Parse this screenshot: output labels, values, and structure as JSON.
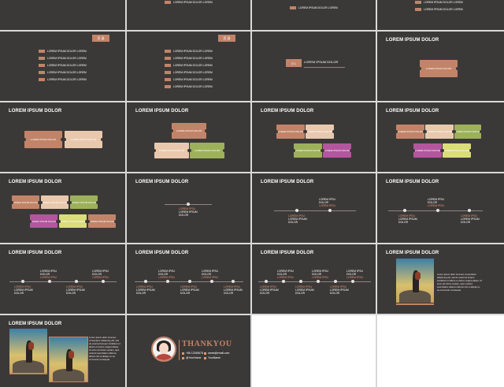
{
  "common": {
    "lorem_title": "LOREM IPSUM DOLOR",
    "lorem_item": "LOREM IPSUM DOLOR LOREM",
    "ticket_text": "LOREM IPSUM DOLOR",
    "timeline_label": "LOREM IPSU",
    "timeline_top_lines": [
      "LOREM IPSU",
      "DOLOR",
      "LOREM IPSU"
    ],
    "timeline_bottom_lines": [
      "LOREM IPSU",
      "LOREM IPSUM",
      "DOLOR"
    ],
    "paragraph": "Lorem ipsum dolor sit amet, consectetur adipiscing elit, sed do eiusmod tempor incididunt ut labore et dolore magna aliqua. Ut enim ad minim veniam, quis nostrud exercitation ullamco laboris nisi ut aliquip ex ea commodo consequat."
  },
  "list_slides": {
    "badge_left": "目 录",
    "badge_right": "目 录",
    "section_num": "0 1",
    "section_text": "LOREM IPSUM DOLOR"
  },
  "thanks": {
    "thank_text": "THANKYOU",
    "phone": "+86 12345678",
    "email": "name@email.com",
    "wechat": "@YourName",
    "qq": "YourName"
  },
  "colors": {
    "background": "#3b3938",
    "accent": "#c28469",
    "cream": "#e9c9ae",
    "green": "#9db15b",
    "pink": "#b4569e",
    "lime": "#dbdc7a"
  }
}
